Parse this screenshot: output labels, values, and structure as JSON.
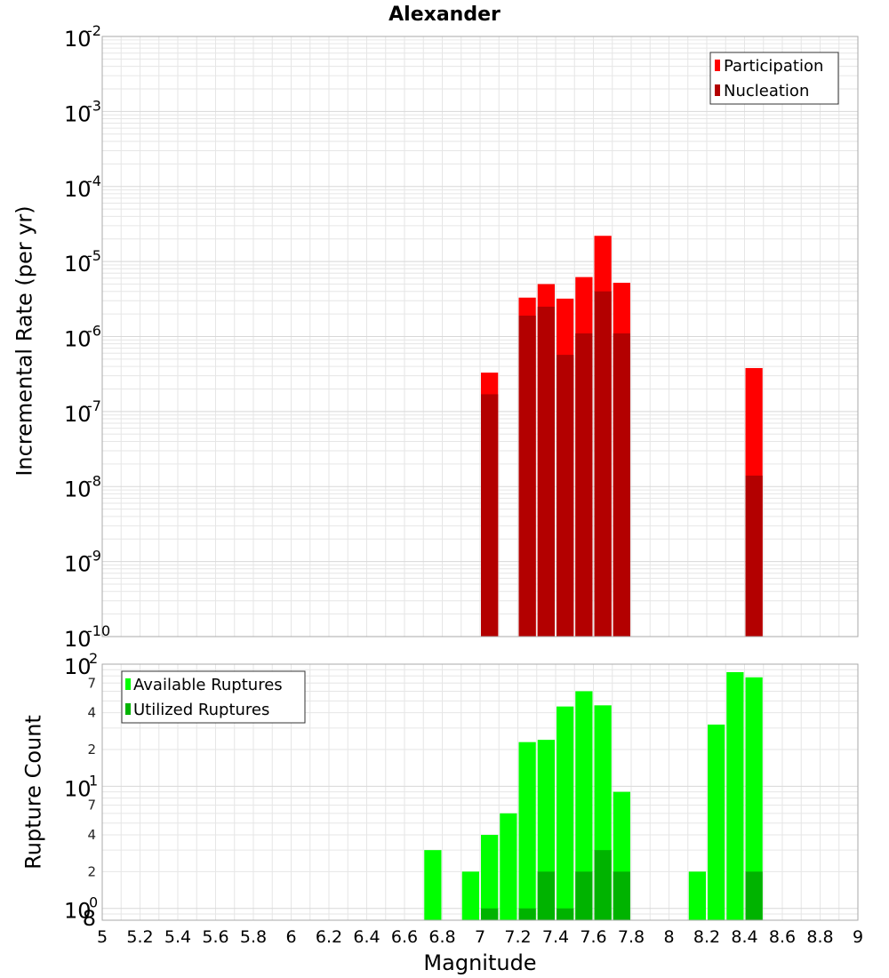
{
  "title": "Alexander",
  "colors": {
    "participation": "#ff0000",
    "nucleation": "#b30000",
    "available": "#00ff00",
    "utilized": "#00b300",
    "grid": "#e6e6e6",
    "frame": "#aaaaaa"
  },
  "chart_data": [
    {
      "type": "bar",
      "panel": "top",
      "title": "Alexander",
      "xlabel": "Magnitude",
      "ylabel": "Incremental Rate (per yr)",
      "yscale": "log",
      "xlim": [
        5,
        9
      ],
      "ylim": [
        1e-10,
        0.01
      ],
      "ytick_labels": [
        {
          "base": "10",
          "exp": "-10"
        },
        {
          "base": "10",
          "exp": "-9"
        },
        {
          "base": "10",
          "exp": "-8"
        },
        {
          "base": "10",
          "exp": "-7"
        },
        {
          "base": "10",
          "exp": "-6"
        },
        {
          "base": "10",
          "exp": "-5"
        },
        {
          "base": "10",
          "exp": "-4"
        },
        {
          "base": "10",
          "exp": "-3"
        },
        {
          "base": "10",
          "exp": "-2"
        }
      ],
      "legend": [
        "Participation",
        "Nucleation"
      ],
      "legend_position": "top-right",
      "bin_width": 0.1,
      "x": [
        7.05,
        7.25,
        7.35,
        7.45,
        7.55,
        7.65,
        7.75,
        8.45
      ],
      "series": [
        {
          "name": "Participation",
          "values": [
            3.3e-07,
            3.3e-06,
            5e-06,
            3.2e-06,
            6.2e-06,
            2.2e-05,
            5.2e-06,
            3.8e-07
          ]
        },
        {
          "name": "Nucleation",
          "values": [
            1.7e-07,
            1.9e-06,
            2.5e-06,
            5.7e-07,
            1.1e-06,
            4e-06,
            1.1e-06,
            1.4e-08
          ]
        }
      ]
    },
    {
      "type": "bar",
      "panel": "bottom",
      "xlabel": "Magnitude",
      "ylabel": "Rupture Count",
      "yscale": "log",
      "xlim": [
        5,
        9
      ],
      "ylim": [
        0.8,
        100
      ],
      "ytick_labels": [
        {
          "base": "10",
          "exp": "0"
        },
        {
          "base": "10",
          "exp": "1"
        },
        {
          "base": "10",
          "exp": "2"
        }
      ],
      "minor_tick_labels": [
        "8",
        "2",
        "4",
        "7",
        "2",
        "4",
        "7"
      ],
      "legend": [
        "Available Ruptures",
        "Utilized Ruptures"
      ],
      "legend_position": "top-left",
      "bin_width": 0.1,
      "series": [
        {
          "name": "Available Ruptures",
          "x": [
            6.75,
            6.95,
            7.05,
            7.15,
            7.25,
            7.35,
            7.45,
            7.55,
            7.65,
            7.75,
            8.15,
            8.25,
            8.35,
            8.45
          ],
          "values": [
            3,
            2,
            4,
            6,
            23,
            24,
            45,
            60,
            46,
            9,
            2,
            32,
            86,
            78
          ]
        },
        {
          "name": "Utilized Ruptures",
          "x": [
            7.05,
            7.25,
            7.35,
            7.45,
            7.55,
            7.65,
            7.75,
            8.45
          ],
          "values": [
            1,
            1,
            2,
            1,
            2,
            3,
            2,
            2
          ]
        }
      ]
    }
  ],
  "xticks": [
    "5",
    "5.2",
    "5.4",
    "5.6",
    "5.8",
    "6",
    "6.2",
    "6.4",
    "6.6",
    "6.8",
    "7",
    "7.2",
    "7.4",
    "7.6",
    "7.8",
    "8",
    "8.2",
    "8.4",
    "8.6",
    "8.8",
    "9"
  ]
}
